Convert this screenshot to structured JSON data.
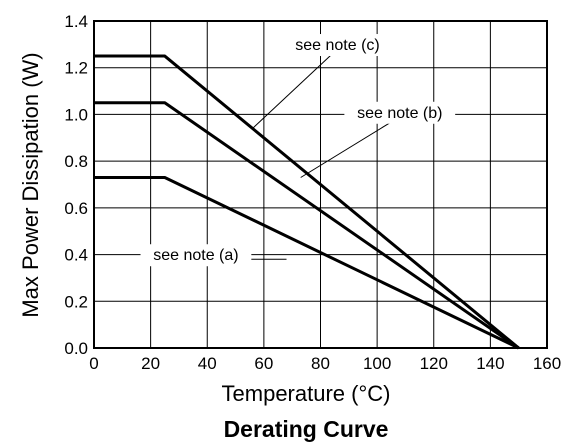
{
  "chart_data": {
    "type": "line",
    "title": "Derating Curve",
    "xlabel": "Temperature (°C)",
    "ylabel": "Max Power Dissipation (W)",
    "xlim": [
      0,
      160
    ],
    "ylim": [
      0,
      1.4
    ],
    "xticks": [
      0,
      20,
      40,
      60,
      80,
      100,
      120,
      140,
      160
    ],
    "yticks": [
      0.0,
      0.2,
      0.4,
      0.6,
      0.8,
      1.0,
      1.2,
      1.4
    ],
    "xtick_labels": [
      "0",
      "20",
      "40",
      "60",
      "80",
      "100",
      "120",
      "140",
      "160"
    ],
    "ytick_labels": [
      "0.0",
      "0.2",
      "0.4",
      "0.6",
      "0.8",
      "1.0",
      "1.2",
      "1.4"
    ],
    "grid": true,
    "series": [
      {
        "x": [
          0,
          25,
          150
        ],
        "y": [
          1.25,
          1.25,
          0
        ]
      },
      {
        "x": [
          0,
          25,
          150
        ],
        "y": [
          1.05,
          1.05,
          0
        ]
      },
      {
        "x": [
          0,
          25,
          150
        ],
        "y": [
          0.73,
          0.73,
          0
        ]
      }
    ],
    "annotations": [
      {
        "text": "see note (c)",
        "x": 86,
        "y": 1.28,
        "target_x": 56,
        "target_y": 0.94
      },
      {
        "text": "see note (b)",
        "x": 108,
        "y": 0.99,
        "target_x": 73,
        "target_y": 0.73
      },
      {
        "text": "see note (a)",
        "x": 36,
        "y": 0.38,
        "target_x": 68,
        "target_y": 0.38
      }
    ]
  }
}
